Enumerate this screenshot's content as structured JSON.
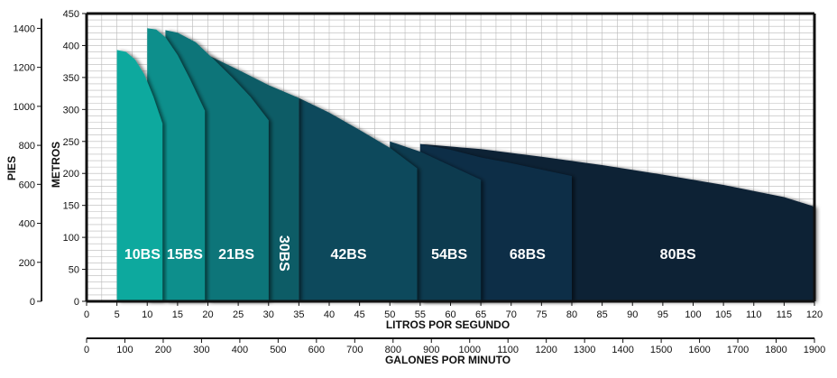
{
  "chart_data": {
    "type": "area",
    "title": "",
    "x_primary": {
      "label": "LITROS POR SEGUNDO",
      "range": [
        0,
        120
      ],
      "ticks": [
        0,
        5,
        10,
        15,
        20,
        25,
        30,
        35,
        40,
        45,
        50,
        55,
        60,
        65,
        70,
        75,
        80,
        85,
        90,
        95,
        100,
        105,
        110,
        115,
        120
      ]
    },
    "x_secondary": {
      "label": "GALONES POR MINUTO",
      "range": [
        0,
        1900
      ],
      "ticks": [
        0,
        100,
        200,
        300,
        400,
        500,
        600,
        700,
        800,
        900,
        1000,
        1100,
        1200,
        1300,
        1400,
        1500,
        1600,
        1700,
        1800,
        1900
      ]
    },
    "y_right": {
      "label": "METROS",
      "range": [
        0,
        450
      ],
      "ticks": [
        0,
        50,
        100,
        150,
        200,
        250,
        300,
        350,
        400,
        450
      ]
    },
    "y_left": {
      "label": "PIES",
      "range": [
        0,
        1476
      ],
      "ticks": [
        0,
        200,
        400,
        600,
        800,
        1000,
        1200,
        1400
      ]
    },
    "grid": true,
    "series": [
      {
        "name": "10BS",
        "color": "#0fa99e",
        "x": [
          5,
          6.5,
          8,
          9.5,
          11,
          12.5
        ],
        "y": [
          393,
          390,
          378,
          355,
          320,
          278
        ]
      },
      {
        "name": "15BS",
        "color": "#0f8f8c",
        "x": [
          10,
          11.5,
          13,
          15,
          17,
          19.5
        ],
        "y": [
          427,
          425,
          413,
          385,
          348,
          298
        ]
      },
      {
        "name": "21BS",
        "color": "#0f7479",
        "x": [
          13,
          15,
          18,
          21,
          24,
          27,
          30
        ],
        "y": [
          424,
          420,
          405,
          378,
          350,
          320,
          283
        ]
      },
      {
        "name": "30BS",
        "color": "#0e5b66",
        "x": [
          20,
          25,
          30,
          35
        ],
        "y": [
          385,
          362,
          338,
          318
        ]
      },
      {
        "name": "42BS",
        "color": "#0d4a5b",
        "x": [
          35,
          40,
          45,
          50,
          54.5
        ],
        "y": [
          318,
          295,
          268,
          240,
          208
        ]
      },
      {
        "name": "54BS",
        "color": "#0c3a50",
        "x": [
          50,
          55,
          60,
          65
        ],
        "y": [
          250,
          234,
          212,
          190
        ]
      },
      {
        "name": "68BS",
        "color": "#0a2d47",
        "x": [
          55,
          60,
          65,
          70,
          75,
          80
        ],
        "y": [
          246,
          237,
          225,
          216,
          206,
          196
        ]
      },
      {
        "name": "80BS",
        "color": "#0b2036",
        "x": [
          55,
          65,
          75,
          85,
          95,
          105,
          115,
          120
        ],
        "y": [
          246,
          238,
          226,
          213,
          198,
          182,
          163,
          148
        ]
      }
    ]
  }
}
